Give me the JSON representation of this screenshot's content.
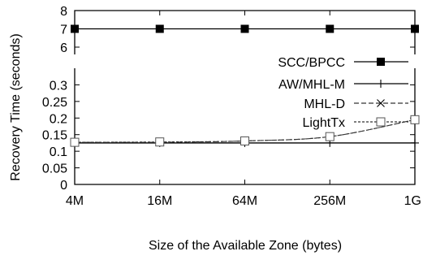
{
  "chart_data": {
    "type": "line",
    "xlabel": "Size of the Available Zone (bytes)",
    "ylabel": "Recovery Time (seconds)",
    "x_scale": "log2",
    "categories": [
      "4M",
      "16M",
      "64M",
      "256M",
      "1G"
    ],
    "x_bytes": [
      4194304,
      16777216,
      67108864,
      268435456,
      1073741824
    ],
    "broken_y_axis": true,
    "panels": [
      {
        "name": "upper",
        "ylim": [
          5.6,
          8
        ],
        "yticks": [
          6,
          7,
          8
        ],
        "ytick_labels": [
          "6",
          "7",
          "8"
        ]
      },
      {
        "name": "lower",
        "ylim": [
          0,
          0.35
        ],
        "yticks": [
          0,
          0.05,
          0.1,
          0.15,
          0.2,
          0.25,
          0.3
        ],
        "ytick_labels": [
          "0",
          "0.05",
          "0.1",
          "0.15",
          "0.2",
          "0.25",
          "0.3"
        ]
      }
    ],
    "legend_position": "right",
    "series": [
      {
        "name": "SCC/BPCC",
        "values": [
          7,
          7,
          7,
          7,
          7
        ],
        "marker": "filled-square",
        "line": "solid",
        "panel": "upper"
      },
      {
        "name": "AW/MHL-M",
        "values": [
          0.125,
          0.125,
          0.125,
          0.125,
          0.125
        ],
        "marker": "plus",
        "line": "solid",
        "panel": "lower"
      },
      {
        "name": "MHL-D",
        "values": [
          0.127,
          0.127,
          0.131,
          0.144,
          0.195
        ],
        "marker": "cross",
        "line": "dashed",
        "panel": "lower"
      },
      {
        "name": "LightTx",
        "values": [
          0.127,
          0.128,
          0.131,
          0.144,
          0.195
        ],
        "marker": "open-square",
        "line": "dotted",
        "panel": "lower"
      }
    ]
  }
}
